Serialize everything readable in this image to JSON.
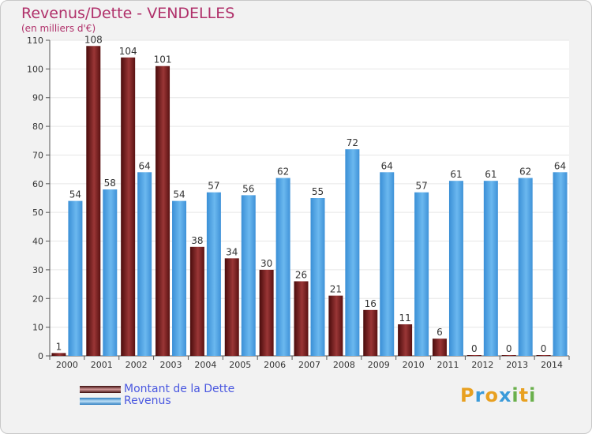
{
  "chart_data": {
    "type": "bar",
    "title": "Revenus/Dette - VENDELLES",
    "subtitle": "(en milliers d'€)",
    "categories": [
      "2000",
      "2001",
      "2002",
      "2003",
      "2004",
      "2005",
      "2006",
      "2007",
      "2008",
      "2009",
      "2010",
      "2011",
      "2012",
      "2013",
      "2014"
    ],
    "series": [
      {
        "name": "Montant de la Dette",
        "color": "#7a1f1f",
        "values": [
          1,
          108,
          104,
          101,
          38,
          34,
          30,
          26,
          21,
          16,
          11,
          6,
          0,
          0,
          0
        ]
      },
      {
        "name": "Revenus",
        "color": "#4ea6e6",
        "values": [
          54,
          58,
          64,
          54,
          57,
          56,
          62,
          55,
          72,
          64,
          57,
          61,
          61,
          62,
          64
        ]
      }
    ],
    "ylim": [
      0,
      110
    ],
    "yticks": [
      0,
      10,
      20,
      30,
      40,
      50,
      60,
      70,
      80,
      90,
      100,
      110
    ],
    "grid": true,
    "legend": "bottom-left"
  },
  "logo": {
    "letters": [
      "P",
      "r",
      "o",
      "x",
      "i",
      "t",
      "i"
    ],
    "colors": [
      "#e8a020",
      "#3a9ad9",
      "#e8a020",
      "#3a9ad9",
      "#6ab04c",
      "#e8a020",
      "#6ab04c"
    ]
  }
}
